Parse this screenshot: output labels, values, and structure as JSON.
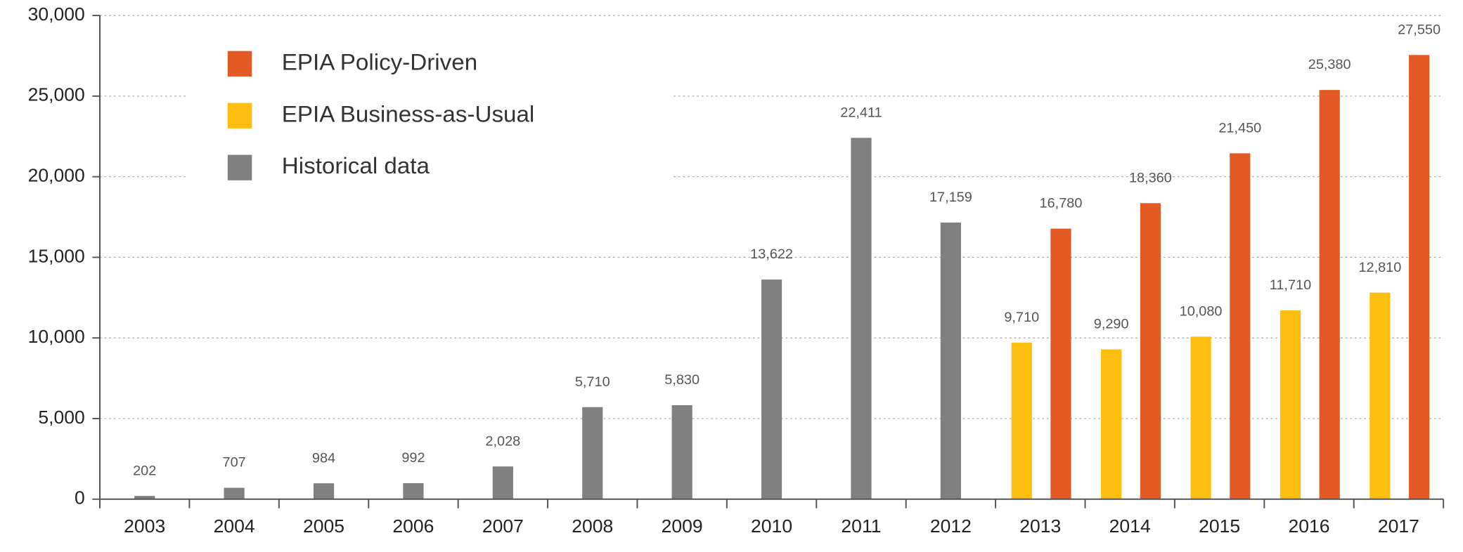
{
  "chart_data": {
    "type": "bar",
    "categories": [
      "2003",
      "2004",
      "2005",
      "2006",
      "2007",
      "2008",
      "2009",
      "2010",
      "2011",
      "2012",
      "2013",
      "2014",
      "2015",
      "2016",
      "2017"
    ],
    "series": [
      {
        "name": "EPIA Policy-Driven",
        "color": "#e35a24",
        "values": [
          null,
          null,
          null,
          null,
          null,
          null,
          null,
          null,
          null,
          null,
          16780,
          18360,
          21450,
          25380,
          27550
        ],
        "value_labels": [
          null,
          null,
          null,
          null,
          null,
          null,
          null,
          null,
          null,
          null,
          "16,780",
          "18,360",
          "21,450",
          "25,380",
          "27,550"
        ]
      },
      {
        "name": "EPIA Business-as-Usual",
        "color": "#fdbe10",
        "values": [
          null,
          null,
          null,
          null,
          null,
          null,
          null,
          null,
          null,
          null,
          9710,
          9290,
          10080,
          11710,
          12810
        ],
        "value_labels": [
          null,
          null,
          null,
          null,
          null,
          null,
          null,
          null,
          null,
          null,
          "9,710",
          "9,290",
          "10,080",
          "11,710",
          "12,810"
        ]
      },
      {
        "name": "Historical data",
        "color": "#808080",
        "values": [
          202,
          707,
          984,
          992,
          2028,
          5710,
          5830,
          13622,
          22411,
          17159,
          null,
          null,
          null,
          null,
          null
        ],
        "value_labels": [
          "202",
          "707",
          "984",
          "992",
          "2,028",
          "5,710",
          "5,830",
          "13,622",
          "22,411",
          "17,159",
          null,
          null,
          null,
          null,
          null
        ]
      }
    ],
    "ylim": [
      0,
      30000
    ],
    "yticks": [
      0,
      {
        "value": 5000,
        "label": "5,000"
      },
      {
        "value": 10000,
        "label": "10,000"
      },
      {
        "value": 15000,
        "label": "15,000"
      },
      {
        "value": 20000,
        "label": "20,000"
      },
      {
        "value": 25000,
        "label": "25,000"
      },
      {
        "value": 30000,
        "label": "30,000"
      }
    ],
    "grid": true,
    "legend": "upper left"
  }
}
